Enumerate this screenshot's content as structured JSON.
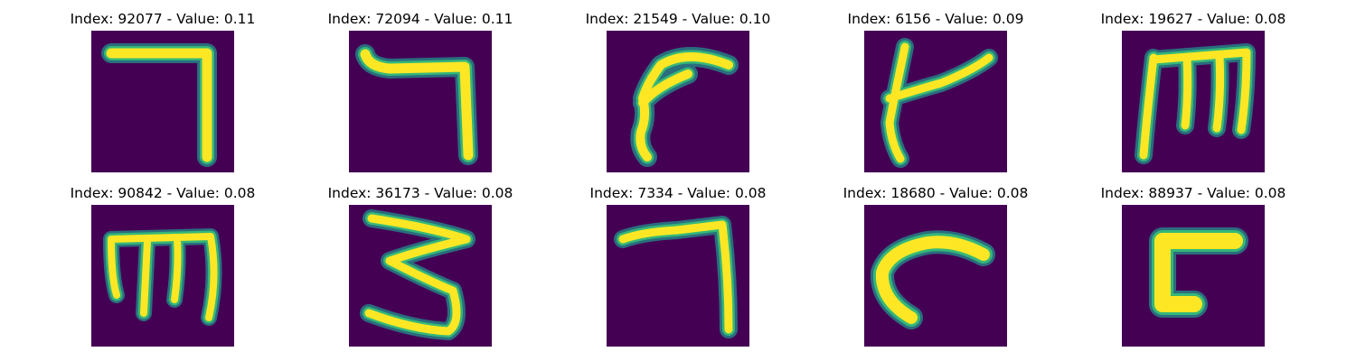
{
  "figure": {
    "panels": [
      {
        "title": "Index: 92077 - Value: 0.11",
        "glyph": "seven-hook-glyph"
      },
      {
        "title": "Index: 72094 - Value: 0.11",
        "glyph": "seven-hook-glyph"
      },
      {
        "title": "Index: 21549 - Value: 0.10",
        "glyph": "curved-stroke-glyph"
      },
      {
        "title": "Index: 6156 - Value: 0.09",
        "glyph": "cross-stroke-glyph"
      },
      {
        "title": "Index: 19627 - Value: 0.08",
        "glyph": "m-shaped-glyph"
      },
      {
        "title": "Index: 90842 - Value: 0.08",
        "glyph": "m-shaped-glyph"
      },
      {
        "title": "Index: 36173 - Value: 0.08",
        "glyph": "three-shaped-glyph"
      },
      {
        "title": "Index: 7334 - Value: 0.08",
        "glyph": "seven-hook-glyph"
      },
      {
        "title": "Index: 18680 - Value: 0.08",
        "glyph": "c-curve-glyph"
      },
      {
        "title": "Index: 88937 - Value: 0.08",
        "glyph": "bracket-glyph"
      }
    ],
    "colors": {
      "background": "#440154",
      "foreground": "#fde725",
      "edge": "#35b779"
    }
  }
}
